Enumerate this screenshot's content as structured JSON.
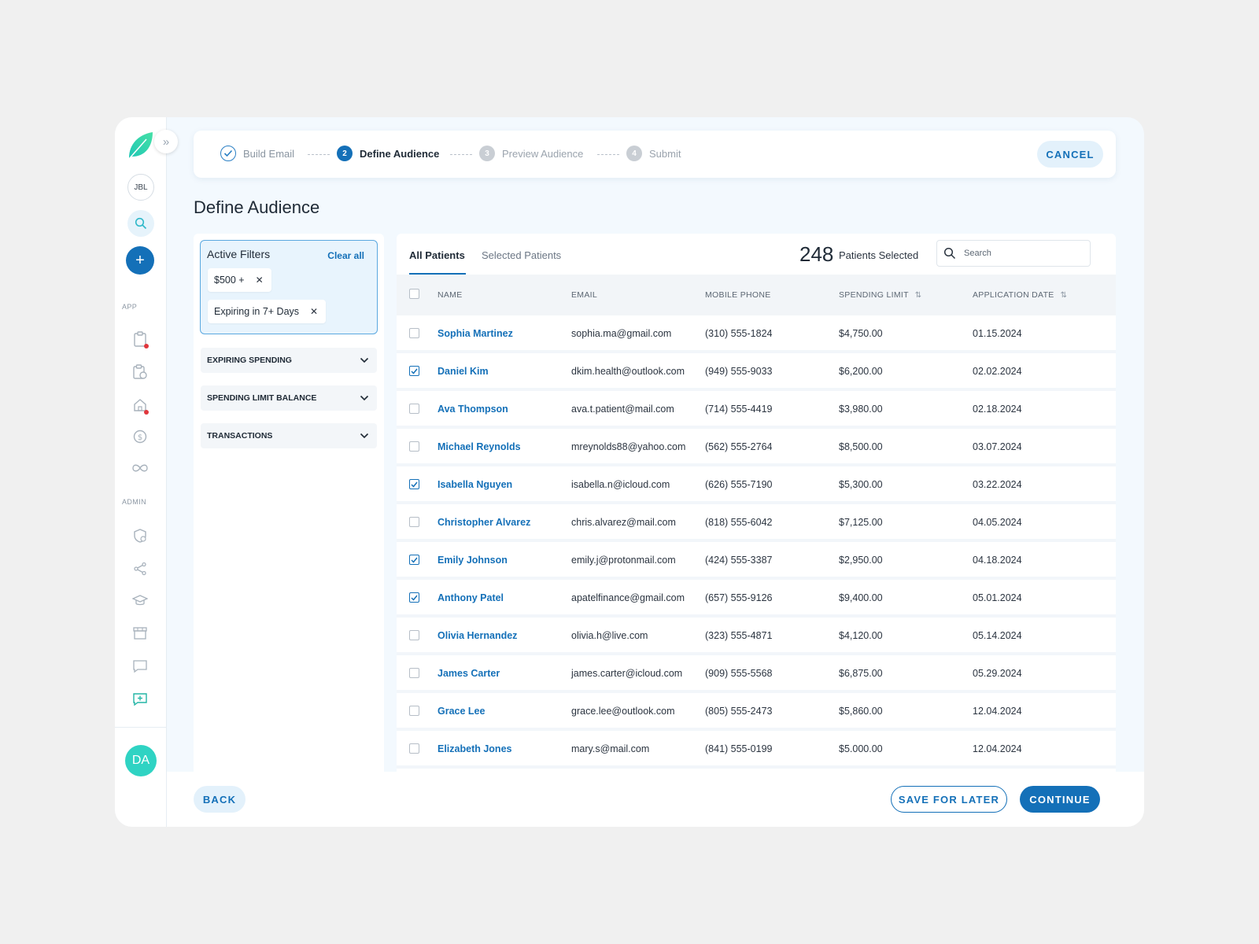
{
  "sidebar": {
    "org_initials": "JBL",
    "section_app": "APP",
    "section_admin": "ADMIN",
    "user_initials": "DA",
    "app_icons": [
      "clipboard-icon",
      "clipboard-clock-icon",
      "home-icon",
      "dollar-icon",
      "infinity-icon"
    ],
    "admin_icons": [
      "shield-user-icon",
      "share-icon",
      "graduation-cap-icon",
      "store-icon",
      "chat-icon",
      "chat-add-icon"
    ]
  },
  "stepper": {
    "steps": [
      {
        "number": "",
        "label": "Build Email",
        "state": "done"
      },
      {
        "number": "2",
        "label": "Define Audience",
        "state": "active"
      },
      {
        "number": "3",
        "label": "Preview Audience",
        "state": "pending"
      },
      {
        "number": "4",
        "label": "Submit",
        "state": "pending"
      }
    ],
    "cancel_label": "CANCEL"
  },
  "page_title": "Define Audience",
  "filters": {
    "active_title": "Active Filters",
    "clear_all": "Clear all",
    "chips": [
      "$500 +",
      "Expiring in 7+ Days"
    ],
    "accordions": [
      "EXPIRING SPENDING",
      "SPENDING LIMIT BALANCE",
      "TRANSACTIONS"
    ]
  },
  "table": {
    "tabs": [
      "All Patients",
      "Selected Patients"
    ],
    "selected_count": "248",
    "selected_label": "Patients Selected",
    "search_placeholder": "Search",
    "columns": [
      "NAME",
      "EMAIL",
      "MOBILE PHONE",
      "SPENDING LIMIT",
      "APPLICATION DATE"
    ],
    "rows": [
      {
        "checked": false,
        "name": "Sophia Martinez",
        "email": "sophia.ma@gmail.com",
        "phone": "(310) 555-1824",
        "limit": "$4,750.00",
        "date": "01.15.2024"
      },
      {
        "checked": true,
        "name": "Daniel Kim",
        "email": "dkim.health@outlook.com",
        "phone": "(949) 555-9033",
        "limit": "$6,200.00",
        "date": "02.02.2024"
      },
      {
        "checked": false,
        "name": "Ava Thompson",
        "email": "ava.t.patient@mail.com",
        "phone": "(714) 555-4419",
        "limit": " $3,980.00",
        "date": " 02.18.2024"
      },
      {
        "checked": false,
        "name": "Michael Reynolds",
        "email": "mreynolds88@yahoo.com",
        "phone": "(562) 555-2764",
        "limit": "$8,500.00",
        "date": "03.07.2024"
      },
      {
        "checked": true,
        "name": "Isabella Nguyen",
        "email": "isabella.n@icloud.com",
        "phone": "(626) 555-7190",
        "limit": "$5,300.00",
        "date": "03.22.2024"
      },
      {
        "checked": false,
        "name": "Christopher Alvarez",
        "email": "chris.alvarez@mail.com",
        "phone": "(818) 555-6042",
        "limit": "$7,125.00",
        "date": "04.05.2024"
      },
      {
        "checked": true,
        "name": "Emily Johnson",
        "email": "emily.j@protonmail.com",
        "phone": "(424) 555-3387",
        "limit": "$2,950.00",
        "date": "04.18.2024"
      },
      {
        "checked": true,
        "name": "Anthony Patel",
        "email": "apatelfinance@gmail.com",
        "phone": "(657) 555-9126",
        "limit": "$9,400.00",
        "date": "05.01.2024"
      },
      {
        "checked": false,
        "name": "Olivia Hernandez",
        "email": " olivia.h@live.com",
        "phone": "(323) 555-4871",
        "limit": "$4,120.00",
        "date": "05.14.2024"
      },
      {
        "checked": false,
        "name": "James Carter",
        "email": "james.carter@icloud.com",
        "phone": "(909) 555-5568",
        "limit": "$6,875.00",
        "date": "05.29.2024"
      },
      {
        "checked": false,
        "name": "Grace Lee",
        "email": "grace.lee@outlook.com",
        "phone": "(805) 555-2473",
        "limit": "$5,860.00",
        "date": "12.04.2024"
      },
      {
        "checked": false,
        "name": "Elizabeth Jones",
        "email": "mary.s@mail.com",
        "phone": "(841) 555-0199",
        "limit": "$5.000.00",
        "date": "12.04.2024"
      }
    ]
  },
  "footer": {
    "back_label": "BACK",
    "save_label": "SAVE FOR LATER",
    "continue_label": "CONTINUE"
  },
  "colors": {
    "primary": "#1470b8",
    "accent_teal": "#2fd3c3",
    "alert": "#e0363c"
  }
}
